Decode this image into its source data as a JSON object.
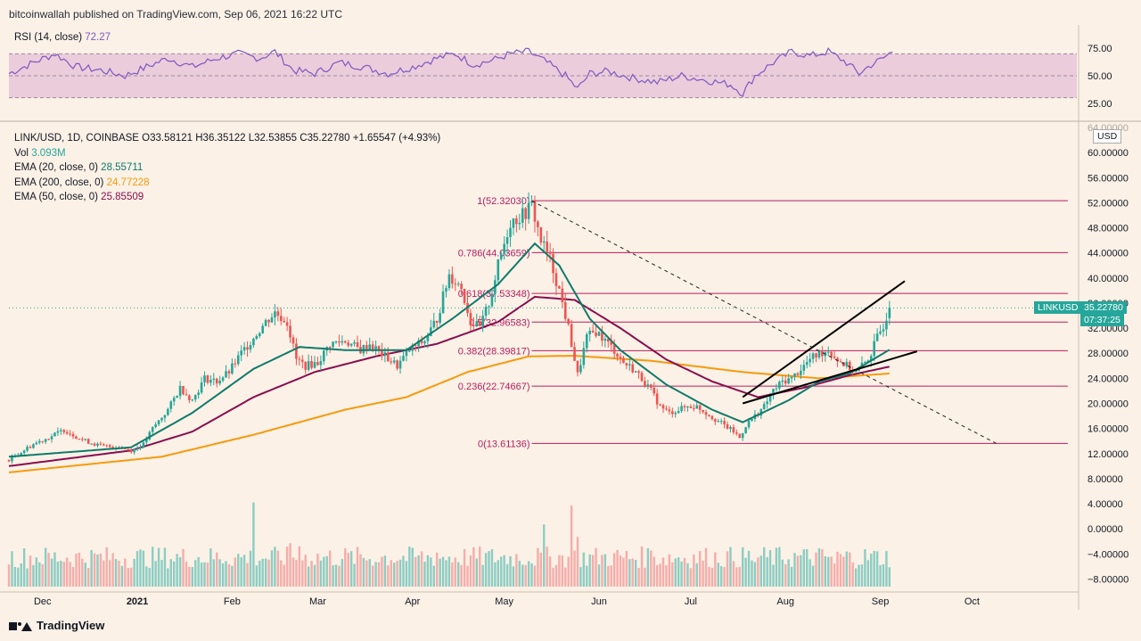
{
  "header": {
    "publisher": "bitcoinwallah published on TradingView.com, Sep 06, 2021 16:22 UTC"
  },
  "rsi": {
    "label": "RSI (14, close)",
    "value": "72.27",
    "levels": [
      "75.00",
      "50.00",
      "25.00"
    ]
  },
  "legend": {
    "symbol_line": "LINK/USD, 1D, COINBASE  O33.58121  H36.35122  L32.53855  C35.22780  +1.65547 (+4.93%)",
    "vol_label": "Vol",
    "vol_value": "3.093M",
    "ema20_label": "EMA (20, close, 0)",
    "ema20_value": "28.55711",
    "ema200_label": "EMA (200, close, 0)",
    "ema200_value": "24.77228",
    "ema50_label": "EMA (50, close, 0)",
    "ema50_value": "25.85509"
  },
  "price_tags": {
    "symbol": "LINKUSD",
    "price": "35.22780",
    "countdown": "07:37:25",
    "currency": "USD"
  },
  "footer": {
    "brand": "TradingView"
  },
  "colors": {
    "background": "#fbf1e6",
    "up": "#26a69a",
    "down": "#ef5350",
    "ema20": "#0f7a6b",
    "ema50": "#880e4f",
    "ema200": "#f59a0c",
    "rsi": "#7e57c2",
    "fib": "#b71c5f"
  },
  "chart_data": {
    "type": "candlestick",
    "title": "LINK/USD, 1D, COINBASE",
    "x_axis": {
      "labels": [
        "Dec",
        "2021",
        "Feb",
        "Mar",
        "Apr",
        "May",
        "Jun",
        "Jul",
        "Aug",
        "Sep",
        "Oct"
      ],
      "day_index": [
        11,
        42,
        73,
        101,
        132,
        162,
        193,
        223,
        254,
        285,
        315
      ]
    },
    "y_axis": {
      "ticks": [
        64,
        60,
        56,
        52,
        48,
        44,
        40,
        36,
        32,
        28,
        24,
        20,
        16,
        12,
        8,
        4,
        0,
        -4,
        -8
      ],
      "tick_labels": [
        "64.00000",
        "60.00000",
        "56.00000",
        "52.00000",
        "48.00000",
        "44.00000",
        "40.00000",
        "36.00000",
        "32.00000",
        "28.00000",
        "24.00000",
        "20.00000",
        "16.00000",
        "12.00000",
        "8.00000",
        "4.00000",
        "0.00000",
        "−4.00000",
        "−8.00000"
      ],
      "range": [
        -9.5,
        64
      ]
    },
    "price_keypoints": [
      [
        0,
        11.0
      ],
      [
        8,
        13.5
      ],
      [
        14,
        14.8
      ],
      [
        18,
        15.8
      ],
      [
        24,
        14.2
      ],
      [
        30,
        13.2
      ],
      [
        36,
        13.0
      ],
      [
        40,
        12.5
      ],
      [
        44,
        13.5
      ],
      [
        47,
        16.0
      ],
      [
        52,
        19.0
      ],
      [
        56,
        22.5
      ],
      [
        60,
        20.5
      ],
      [
        64,
        24.0
      ],
      [
        68,
        23.5
      ],
      [
        72,
        25.0
      ],
      [
        76,
        28.0
      ],
      [
        80,
        30.5
      ],
      [
        84,
        33.0
      ],
      [
        87,
        34.5
      ],
      [
        91,
        33.0
      ],
      [
        94,
        27.0
      ],
      [
        97,
        26.0
      ],
      [
        101,
        26.5
      ],
      [
        105,
        29.5
      ],
      [
        110,
        30.0
      ],
      [
        115,
        28.5
      ],
      [
        118,
        29.5
      ],
      [
        123,
        27.5
      ],
      [
        127,
        26.0
      ],
      [
        131,
        28.5
      ],
      [
        136,
        30.0
      ],
      [
        140,
        33.5
      ],
      [
        144,
        40.5
      ],
      [
        148,
        38.5
      ],
      [
        151,
        33.0
      ],
      [
        154,
        32.0
      ],
      [
        157,
        36.0
      ],
      [
        160,
        42.0
      ],
      [
        164,
        49.0
      ],
      [
        168,
        50.0
      ],
      [
        171,
        51.5
      ],
      [
        174,
        46.0
      ],
      [
        177,
        43.0
      ],
      [
        180,
        38.0
      ],
      [
        183,
        32.0
      ],
      [
        186,
        24.5
      ],
      [
        189,
        30.5
      ],
      [
        192,
        31.5
      ],
      [
        195,
        30.0
      ],
      [
        198,
        28.5
      ],
      [
        201,
        26.5
      ],
      [
        204,
        25.5
      ],
      [
        207,
        24.0
      ],
      [
        210,
        22.0
      ],
      [
        213,
        19.5
      ],
      [
        216,
        18.5
      ],
      [
        219,
        19.0
      ],
      [
        222,
        19.5
      ],
      [
        225,
        19.5
      ],
      [
        228,
        18.5
      ],
      [
        231,
        17.5
      ],
      [
        234,
        16.5
      ],
      [
        237,
        15.5
      ],
      [
        239,
        14.5
      ],
      [
        241,
        16.5
      ],
      [
        244,
        18.0
      ],
      [
        247,
        19.5
      ],
      [
        250,
        22.0
      ],
      [
        253,
        23.5
      ],
      [
        256,
        24.0
      ],
      [
        259,
        25.5
      ],
      [
        262,
        27.0
      ],
      [
        265,
        28.0
      ],
      [
        268,
        28.5
      ],
      [
        271,
        27.0
      ],
      [
        274,
        26.0
      ],
      [
        277,
        25.0
      ],
      [
        280,
        26.5
      ],
      [
        282,
        28.0
      ],
      [
        284,
        30.5
      ],
      [
        286,
        32.5
      ],
      [
        288,
        35.2
      ]
    ],
    "last_candle": {
      "open": 33.58121,
      "high": 36.35122,
      "low": 32.53855,
      "close": 35.2278
    },
    "fibonacci": {
      "levels": [
        {
          "label": "1(52.32030)",
          "value": 52.3203
        },
        {
          "label": "0.786(44.03659)",
          "value": 44.03659
        },
        {
          "label": "0.618(37.53348)",
          "value": 37.53348
        },
        {
          "label": "0.5(32.96583)",
          "value": 32.96583
        },
        {
          "label": "0.382(28.39817)",
          "value": 28.39817
        },
        {
          "label": "0.236(22.74667)",
          "value": 22.74667
        },
        {
          "label": "0(13.61136)",
          "value": 13.61136
        }
      ],
      "start_day": 171,
      "end_day": 323
    },
    "trendlines": [
      {
        "style": "dashed",
        "from": [
          171,
          52.3
        ],
        "to": [
          323,
          13.6
        ]
      },
      {
        "style": "solid",
        "from": [
          240,
          21.0
        ],
        "to": [
          293,
          39.5
        ]
      },
      {
        "style": "solid",
        "from": [
          240,
          20.0
        ],
        "to": [
          297,
          28.3
        ]
      }
    ],
    "ema20_keypoints": [
      [
        0,
        11.5
      ],
      [
        40,
        13.0
      ],
      [
        60,
        18.5
      ],
      [
        80,
        25.5
      ],
      [
        95,
        29.0
      ],
      [
        110,
        28.5
      ],
      [
        130,
        28.5
      ],
      [
        145,
        33.5
      ],
      [
        160,
        39.0
      ],
      [
        172,
        45.5
      ],
      [
        180,
        42.0
      ],
      [
        190,
        33.5
      ],
      [
        200,
        28.5
      ],
      [
        215,
        23.0
      ],
      [
        230,
        19.0
      ],
      [
        240,
        17.0
      ],
      [
        255,
        20.5
      ],
      [
        265,
        23.5
      ],
      [
        275,
        24.8
      ],
      [
        288,
        28.56
      ]
    ],
    "ema50_keypoints": [
      [
        0,
        10.0
      ],
      [
        40,
        12.5
      ],
      [
        60,
        15.5
      ],
      [
        80,
        21.0
      ],
      [
        100,
        25.0
      ],
      [
        120,
        27.5
      ],
      [
        140,
        29.5
      ],
      [
        160,
        33.0
      ],
      [
        172,
        37.0
      ],
      [
        185,
        36.5
      ],
      [
        200,
        32.0
      ],
      [
        215,
        27.0
      ],
      [
        230,
        23.5
      ],
      [
        245,
        21.0
      ],
      [
        260,
        22.5
      ],
      [
        275,
        24.5
      ],
      [
        288,
        25.86
      ]
    ],
    "ema200_keypoints": [
      [
        0,
        9.0
      ],
      [
        50,
        11.5
      ],
      [
        80,
        15.0
      ],
      [
        110,
        19.0
      ],
      [
        130,
        21.0
      ],
      [
        150,
        25.0
      ],
      [
        170,
        27.5
      ],
      [
        185,
        27.6
      ],
      [
        210,
        26.8
      ],
      [
        240,
        25.0
      ],
      [
        265,
        24.0
      ],
      [
        288,
        24.77
      ]
    ],
    "volume": {
      "note": "Volume histogram, values in millions, plotted on the same price scale baseline (~-8.3)",
      "spikes": [
        [
          80,
          12.5
        ],
        [
          92,
          6.0
        ],
        [
          95,
          5.5
        ],
        [
          120,
          3.0
        ],
        [
          140,
          4.5
        ],
        [
          175,
          9.0
        ],
        [
          184,
          12.0
        ],
        [
          186,
          7.0
        ],
        [
          209,
          5.2
        ],
        [
          244,
          3.0
        ],
        [
          270,
          2.8
        ]
      ]
    },
    "rsi_keypoints": [
      [
        0,
        52
      ],
      [
        8,
        62
      ],
      [
        15,
        70
      ],
      [
        22,
        58
      ],
      [
        30,
        55
      ],
      [
        38,
        50
      ],
      [
        45,
        58
      ],
      [
        52,
        66
      ],
      [
        60,
        58
      ],
      [
        68,
        66
      ],
      [
        75,
        70
      ],
      [
        82,
        66
      ],
      [
        87,
        72
      ],
      [
        93,
        55
      ],
      [
        100,
        52
      ],
      [
        108,
        62
      ],
      [
        116,
        58
      ],
      [
        124,
        52
      ],
      [
        132,
        58
      ],
      [
        140,
        66
      ],
      [
        146,
        70
      ],
      [
        152,
        60
      ],
      [
        158,
        64
      ],
      [
        164,
        70
      ],
      [
        170,
        72
      ],
      [
        176,
        62
      ],
      [
        182,
        50
      ],
      [
        186,
        38
      ],
      [
        190,
        52
      ],
      [
        196,
        54
      ],
      [
        204,
        48
      ],
      [
        212,
        44
      ],
      [
        220,
        50
      ],
      [
        228,
        46
      ],
      [
        236,
        42
      ],
      [
        240,
        34
      ],
      [
        244,
        50
      ],
      [
        250,
        62
      ],
      [
        256,
        72
      ],
      [
        262,
        68
      ],
      [
        268,
        72
      ],
      [
        274,
        62
      ],
      [
        278,
        52
      ],
      [
        282,
        60
      ],
      [
        286,
        66
      ],
      [
        289,
        72.27
      ]
    ],
    "rsi_range": [
      20,
      80
    ]
  }
}
